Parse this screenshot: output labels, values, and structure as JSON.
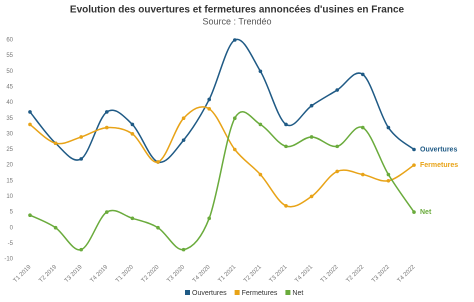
{
  "chart_data": {
    "type": "line",
    "title": "Evolution des ouvertures et fermetures annoncées d'usines en France",
    "subtitle": "Source : Trendéo",
    "categories": [
      "T1 2019",
      "T2 2019",
      "T3 2019",
      "T4 2019",
      "T1 2020",
      "T2 2020",
      "T3 2020",
      "T4 2020",
      "T1 2021",
      "T2 2021",
      "T3 2021",
      "T4 2021",
      "T1 2022",
      "T2 2022",
      "T3 2022",
      "T4 2022"
    ],
    "series": [
      {
        "name": "Ouvertures",
        "color": "#1f5a85",
        "values": [
          37,
          27,
          22,
          37,
          33,
          21,
          28,
          41,
          60,
          50,
          33,
          39,
          44,
          49,
          32,
          25
        ]
      },
      {
        "name": "Fermetures",
        "color": "#e8a317",
        "values": [
          33,
          27,
          29,
          32,
          30,
          21,
          35,
          38,
          25,
          17,
          7,
          10,
          18,
          17,
          15,
          20
        ]
      },
      {
        "name": "Net",
        "color": "#6aab3c",
        "values": [
          4,
          0,
          -7,
          5,
          3,
          0,
          -7,
          3,
          35,
          33,
          26,
          29,
          26,
          32,
          17,
          5
        ]
      }
    ],
    "ylim": [
      -10,
      60
    ],
    "yticks": [
      -10,
      -5,
      0,
      5,
      10,
      15,
      20,
      25,
      30,
      35,
      40,
      45,
      50,
      55,
      60
    ],
    "grid": false
  }
}
